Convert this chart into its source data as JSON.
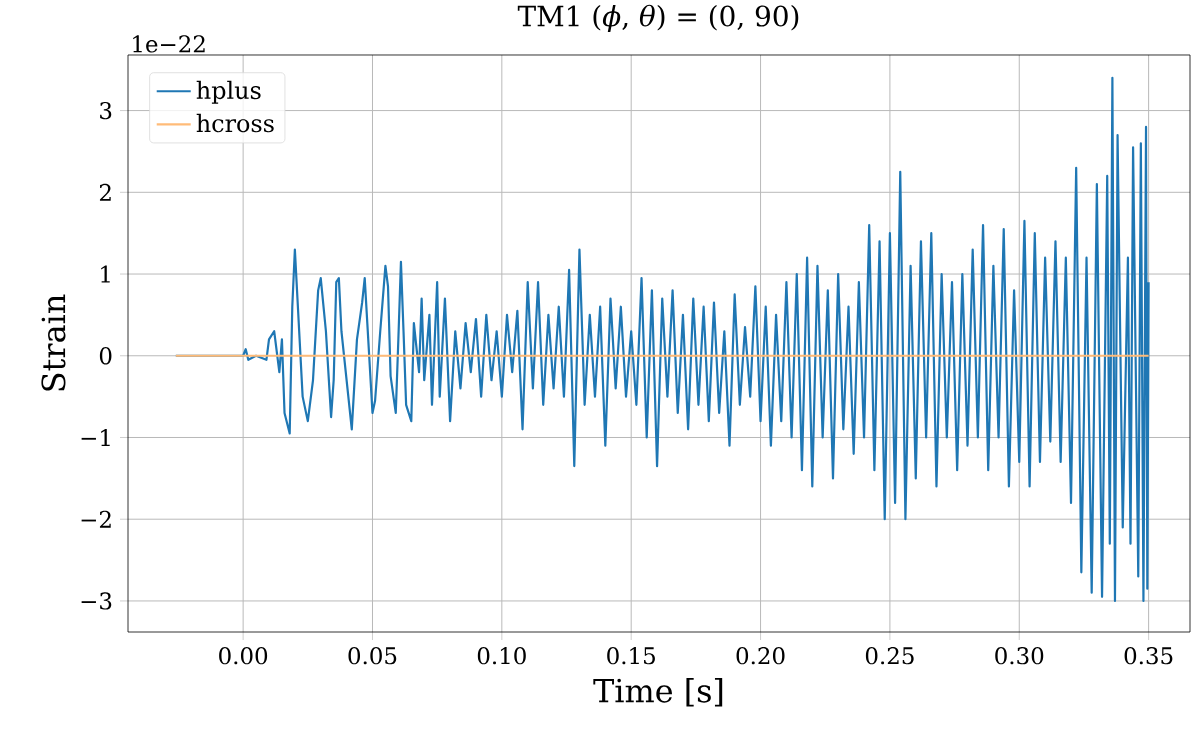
{
  "chart_data": {
    "type": "line",
    "title": "TM1 (*ϕ*, *θ*) = (0, 90)",
    "xlabel": "Time [s]",
    "ylabel": "Strain",
    "annotations": [
      "1e−22"
    ],
    "xlim": [
      -0.0445,
      0.366
    ],
    "ylim": [
      -3.38,
      3.68
    ],
    "xticks": [
      {
        "value": 0,
        "label": "0.00"
      },
      {
        "value": 0.05,
        "label": "0.05"
      },
      {
        "value": 0.1,
        "label": "0.10"
      },
      {
        "value": 0.15,
        "label": "0.15"
      },
      {
        "value": 0.2,
        "label": "0.20"
      },
      {
        "value": 0.25,
        "label": "0.25"
      },
      {
        "value": 0.3,
        "label": "0.30"
      },
      {
        "value": 0.35,
        "label": "0.35"
      }
    ],
    "yticks": [
      {
        "value": -3,
        "label": "−3"
      },
      {
        "value": -2,
        "label": "−2"
      },
      {
        "value": -1,
        "label": "−1"
      },
      0,
      1,
      2,
      3
    ],
    "grid": true,
    "legend": "top left",
    "line_style": "solid",
    "series": [
      {
        "name": "hplus",
        "color": "#1f77b4",
        "x": [
          -0.026,
          0.0,
          0.001,
          0.002,
          0.005,
          0.009,
          0.01,
          0.012,
          0.014,
          0.015,
          0.016,
          0.018,
          0.019,
          0.02,
          0.021,
          0.023,
          0.025,
          0.027,
          0.029,
          0.03,
          0.032,
          0.034,
          0.035,
          0.036,
          0.037,
          0.038,
          0.04,
          0.042,
          0.044,
          0.046,
          0.047,
          0.048,
          0.05,
          0.051,
          0.053,
          0.055,
          0.056,
          0.057,
          0.059,
          0.06,
          0.061,
          0.062,
          0.063,
          0.065,
          0.066,
          0.068,
          0.069,
          0.07,
          0.072,
          0.073,
          0.075,
          0.076,
          0.078,
          0.08,
          0.082,
          0.084,
          0.086,
          0.088,
          0.09,
          0.092,
          0.094,
          0.096,
          0.098,
          0.1,
          0.102,
          0.104,
          0.106,
          0.108,
          0.11,
          0.112,
          0.114,
          0.116,
          0.118,
          0.12,
          0.122,
          0.124,
          0.126,
          0.128,
          0.13,
          0.132,
          0.134,
          0.136,
          0.138,
          0.14,
          0.142,
          0.144,
          0.146,
          0.148,
          0.15,
          0.152,
          0.154,
          0.156,
          0.158,
          0.16,
          0.162,
          0.164,
          0.166,
          0.168,
          0.17,
          0.172,
          0.174,
          0.176,
          0.178,
          0.18,
          0.182,
          0.184,
          0.186,
          0.188,
          0.19,
          0.192,
          0.194,
          0.196,
          0.198,
          0.2,
          0.202,
          0.204,
          0.206,
          0.208,
          0.21,
          0.212,
          0.214,
          0.216,
          0.218,
          0.22,
          0.222,
          0.224,
          0.226,
          0.228,
          0.23,
          0.232,
          0.234,
          0.236,
          0.238,
          0.24,
          0.242,
          0.244,
          0.246,
          0.248,
          0.25,
          0.252,
          0.254,
          0.256,
          0.258,
          0.26,
          0.262,
          0.264,
          0.266,
          0.268,
          0.27,
          0.272,
          0.274,
          0.276,
          0.278,
          0.28,
          0.282,
          0.284,
          0.286,
          0.288,
          0.29,
          0.292,
          0.294,
          0.296,
          0.298,
          0.3,
          0.302,
          0.304,
          0.306,
          0.308,
          0.31,
          0.312,
          0.314,
          0.316,
          0.318,
          0.32,
          0.322,
          0.324,
          0.326,
          0.328,
          0.33,
          0.332,
          0.334,
          0.335,
          0.336,
          0.337,
          0.338,
          0.34,
          0.342,
          0.343,
          0.344,
          0.346,
          0.347,
          0.348,
          0.349,
          0.3495,
          0.35
        ],
        "values": [
          0,
          0,
          0.08,
          -0.05,
          0,
          -0.05,
          0.2,
          0.3,
          -0.2,
          0.2,
          -0.7,
          -0.95,
          0.6,
          1.3,
          0.7,
          -0.5,
          -0.8,
          -0.3,
          0.8,
          0.95,
          0.3,
          -0.75,
          -0.3,
          0.9,
          0.95,
          0.3,
          -0.3,
          -0.9,
          0.2,
          0.65,
          0.95,
          0.4,
          -0.7,
          -0.55,
          0.3,
          1.1,
          0.85,
          -0.25,
          -0.7,
          0.2,
          1.15,
          0.3,
          -0.6,
          -0.8,
          0.4,
          -0.2,
          0.7,
          -0.3,
          0.5,
          -0.6,
          0.9,
          -0.5,
          0.7,
          -0.8,
          0.3,
          -0.4,
          0.4,
          -0.2,
          0.45,
          -0.5,
          0.5,
          -0.3,
          0.3,
          -0.5,
          0.5,
          -0.2,
          0.55,
          -0.9,
          0.9,
          -0.4,
          0.9,
          -0.6,
          0.5,
          -0.4,
          0.6,
          -0.5,
          1.05,
          -1.35,
          1.3,
          -0.6,
          0.5,
          -0.5,
          0.6,
          -1.1,
          0.7,
          -0.4,
          0.6,
          -0.5,
          0.3,
          -0.6,
          0.95,
          -1.0,
          0.8,
          -1.35,
          0.7,
          -0.5,
          0.8,
          -0.7,
          0.5,
          -0.9,
          0.7,
          -0.6,
          0.6,
          -0.8,
          0.65,
          -0.7,
          0.3,
          -1.1,
          0.75,
          -0.6,
          0.35,
          -0.5,
          0.85,
          -0.8,
          0.6,
          -1.1,
          0.5,
          -0.8,
          0.9,
          -1.0,
          1.0,
          -1.4,
          1.2,
          -1.6,
          1.1,
          -1.0,
          0.8,
          -1.5,
          1.0,
          -0.9,
          0.6,
          -1.2,
          0.9,
          -1.0,
          1.6,
          -1.4,
          1.4,
          -2.0,
          1.5,
          -1.8,
          2.25,
          -2.0,
          1.1,
          -1.5,
          1.4,
          -1.0,
          1.5,
          -1.6,
          1.0,
          -1.0,
          0.9,
          -1.4,
          1.0,
          -1.1,
          1.3,
          -1.0,
          1.6,
          -1.4,
          1.1,
          -1.0,
          1.55,
          -1.6,
          0.8,
          -1.3,
          1.65,
          -1.6,
          1.5,
          -1.3,
          1.2,
          -1.05,
          1.4,
          -1.3,
          1.2,
          -1.8,
          2.3,
          -2.65,
          1.2,
          -2.9,
          2.1,
          -2.95,
          2.2,
          -2.3,
          3.4,
          -3.0,
          2.7,
          -2.1,
          1.2,
          -2.3,
          2.55,
          -2.7,
          2.6,
          -3.0,
          2.8,
          -2.85,
          0.9
        ]
      },
      {
        "name": "hcross",
        "color": "#ffbb78",
        "x": [
          -0.026,
          0.35
        ],
        "values": [
          0,
          0
        ]
      }
    ]
  }
}
